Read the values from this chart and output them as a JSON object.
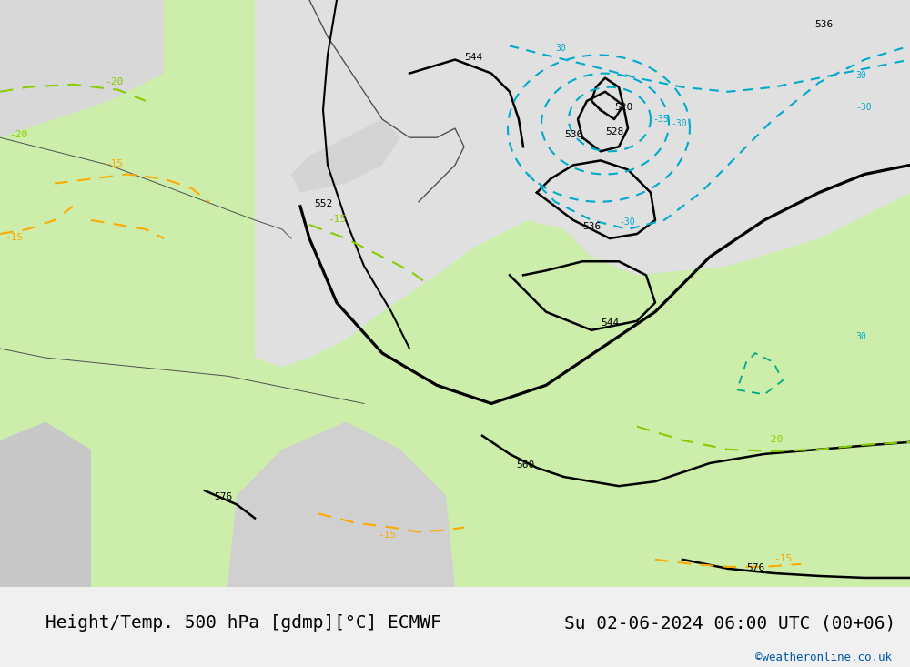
{
  "title_left": "Height/Temp. 500 hPa [gdmp][°C] ECMWF",
  "title_right": "Su 02-06-2024 06:00 UTC (00+06)",
  "copyright": "©weatheronline.co.uk",
  "bg_map_color": "#e8e8e8",
  "bg_land_color": "#cceeaa",
  "bg_sea_color": "#e0e8e0",
  "contour_color_black": "#000000",
  "contour_color_cyan": "#00aacc",
  "contour_color_green_dash": "#88cc00",
  "contour_color_orange_dash": "#ffaa00",
  "contour_color_teal": "#00ccaa",
  "title_fontsize": 14,
  "copyright_color": "#0055aa",
  "bottom_bar_color": "#f0f0f0"
}
